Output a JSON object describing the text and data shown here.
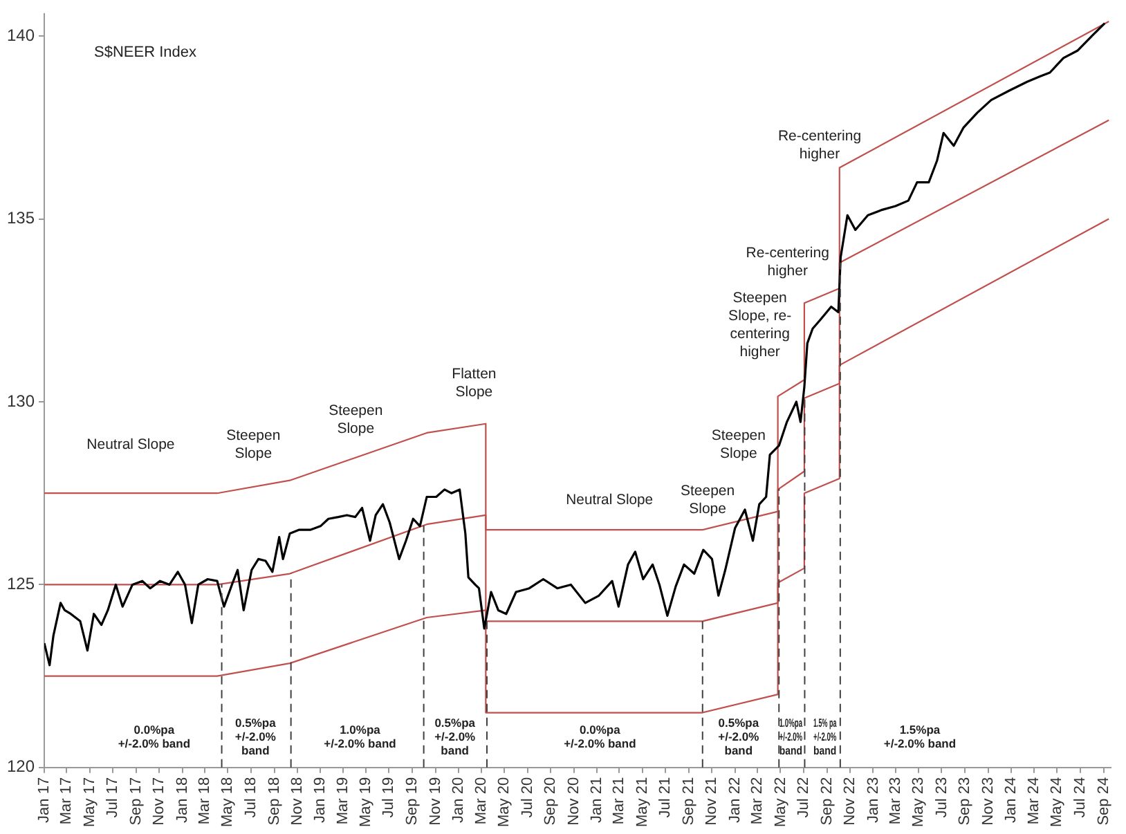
{
  "chart_data": {
    "type": "line",
    "title": "S$NEER Index",
    "xlim": [
      "2017-01-01",
      "2024-09-20"
    ],
    "xticks": [
      {
        "value": "2017-01-01",
        "label": "Jan 17"
      },
      {
        "value": "2017-03-01",
        "label": "Mar 17"
      },
      {
        "value": "2017-05-01",
        "label": "May 17"
      },
      {
        "value": "2017-07-01",
        "label": "Jul 17"
      },
      {
        "value": "2017-09-01",
        "label": "Sep 17"
      },
      {
        "value": "2017-11-01",
        "label": "Nov 17"
      },
      {
        "value": "2018-01-01",
        "label": "Jan 18"
      },
      {
        "value": "2018-03-01",
        "label": "Mar 18"
      },
      {
        "value": "2018-05-01",
        "label": "May 18"
      },
      {
        "value": "2018-07-01",
        "label": "Jul 18"
      },
      {
        "value": "2018-09-01",
        "label": "Sep 18"
      },
      {
        "value": "2018-11-01",
        "label": "Nov 18"
      },
      {
        "value": "2019-01-01",
        "label": "Jan 19"
      },
      {
        "value": "2019-03-01",
        "label": "Mar 19"
      },
      {
        "value": "2019-05-01",
        "label": "May 19"
      },
      {
        "value": "2019-07-01",
        "label": "Jul 19"
      },
      {
        "value": "2019-09-01",
        "label": "Sep 19"
      },
      {
        "value": "2019-11-01",
        "label": "Nov 19"
      },
      {
        "value": "2020-01-01",
        "label": "Jan 20"
      },
      {
        "value": "2020-03-01",
        "label": "Mar 20"
      },
      {
        "value": "2020-05-01",
        "label": "May 20"
      },
      {
        "value": "2020-07-01",
        "label": "Jul 20"
      },
      {
        "value": "2020-09-01",
        "label": "Sep 20"
      },
      {
        "value": "2020-11-01",
        "label": "Nov 20"
      },
      {
        "value": "2021-01-01",
        "label": "Jan 21"
      },
      {
        "value": "2021-03-01",
        "label": "Mar 21"
      },
      {
        "value": "2021-05-01",
        "label": "May 21"
      },
      {
        "value": "2021-07-01",
        "label": "Jul 21"
      },
      {
        "value": "2021-09-01",
        "label": "Sep 21"
      },
      {
        "value": "2021-11-01",
        "label": "Nov 21"
      },
      {
        "value": "2022-01-01",
        "label": "Jan 22"
      },
      {
        "value": "2022-03-01",
        "label": "Mar 22"
      },
      {
        "value": "2022-05-01",
        "label": "May 22"
      },
      {
        "value": "2022-07-01",
        "label": "Jul 22"
      },
      {
        "value": "2022-09-01",
        "label": "Sep 22"
      },
      {
        "value": "2022-11-01",
        "label": "Nov 22"
      },
      {
        "value": "2023-01-01",
        "label": "Jan 23"
      },
      {
        "value": "2023-03-01",
        "label": "Mar 23"
      },
      {
        "value": "2023-05-01",
        "label": "May 23"
      },
      {
        "value": "2023-07-01",
        "label": "Jul 23"
      },
      {
        "value": "2023-09-01",
        "label": "Sep 23"
      },
      {
        "value": "2023-11-01",
        "label": "Nov 23"
      },
      {
        "value": "2024-01-01",
        "label": "Jan 24"
      },
      {
        "value": "2024-03-01",
        "label": "Mar 24"
      },
      {
        "value": "2024-05-01",
        "label": "May 24"
      },
      {
        "value": "2024-07-01",
        "label": "Jul 24"
      },
      {
        "value": "2024-09-01",
        "label": "Sep 24"
      }
    ],
    "ylim": [
      120,
      140.6
    ],
    "yticks": [
      120,
      125,
      130,
      135,
      140
    ],
    "grid": false,
    "legend": false,
    "marker": "none",
    "line_style": "solid",
    "series": [
      {
        "color": "#000000",
        "x": [
          "2017-01-01",
          "2017-01-15",
          "2017-01-25",
          "2017-02-13",
          "2017-02-24",
          "2017-03-12",
          "2017-04-06",
          "2017-04-25",
          "2017-05-12",
          "2017-06-01",
          "2017-06-18",
          "2017-07-09",
          "2017-07-27",
          "2017-08-22",
          "2017-09-17",
          "2017-10-08",
          "2017-11-03",
          "2017-11-28",
          "2017-12-20",
          "2018-01-08",
          "2018-01-26",
          "2018-02-12",
          "2018-03-09",
          "2018-04-03",
          "2018-04-21",
          "2018-05-12",
          "2018-05-27",
          "2018-06-12",
          "2018-07-03",
          "2018-07-21",
          "2018-08-09",
          "2018-08-27",
          "2018-09-14",
          "2018-09-24",
          "2018-10-12",
          "2018-11-06",
          "2018-12-06",
          "2019-01-01",
          "2019-01-22",
          "2019-02-17",
          "2019-03-12",
          "2019-04-03",
          "2019-04-21",
          "2019-05-12",
          "2019-05-27",
          "2019-06-15",
          "2019-07-03",
          "2019-07-28",
          "2019-08-15",
          "2019-09-03",
          "2019-09-21",
          "2019-10-09",
          "2019-11-03",
          "2019-11-25",
          "2019-12-13",
          "2020-01-04",
          "2020-01-19",
          "2020-01-27",
          "2020-02-14",
          "2020-02-24",
          "2020-03-09",
          "2020-03-27",
          "2020-04-15",
          "2020-05-06",
          "2020-06-01",
          "2020-07-06",
          "2020-08-12",
          "2020-09-18",
          "2020-10-24",
          "2020-12-01",
          "2021-01-06",
          "2021-02-10",
          "2021-02-27",
          "2021-03-24",
          "2021-04-12",
          "2021-05-03",
          "2021-05-28",
          "2021-06-15",
          "2021-07-06",
          "2021-07-28",
          "2021-08-19",
          "2021-09-15",
          "2021-10-09",
          "2021-11-01",
          "2021-11-18",
          "2021-12-06",
          "2022-01-01",
          "2022-01-27",
          "2022-02-17",
          "2022-03-06",
          "2022-03-24",
          "2022-04-03",
          "2022-04-27",
          "2022-05-18",
          "2022-06-12",
          "2022-06-23",
          "2022-07-03",
          "2022-07-11",
          "2022-07-25",
          "2022-08-15",
          "2022-09-12",
          "2022-10-01",
          "2022-10-07",
          "2022-10-25",
          "2022-11-15",
          "2022-12-18",
          "2023-01-25",
          "2023-03-01",
          "2023-04-04",
          "2023-04-27",
          "2023-05-28",
          "2023-06-19",
          "2023-07-06",
          "2023-08-02",
          "2023-08-28",
          "2023-10-03",
          "2023-11-09",
          "2023-12-25",
          "2024-02-12",
          "2024-03-18",
          "2024-04-12",
          "2024-05-18",
          "2024-06-24",
          "2024-08-01",
          "2024-09-04"
        ],
        "values": [
          123.4,
          122.8,
          123.6,
          124.5,
          124.3,
          124.2,
          124.0,
          123.2,
          124.2,
          123.9,
          124.3,
          125.0,
          124.4,
          125.0,
          125.1,
          124.9,
          125.1,
          125.0,
          125.35,
          125.0,
          123.95,
          125.0,
          125.15,
          125.1,
          124.4,
          125.0,
          125.4,
          124.3,
          125.4,
          125.7,
          125.65,
          125.35,
          126.3,
          125.7,
          126.4,
          126.5,
          126.5,
          126.6,
          126.8,
          126.85,
          126.9,
          126.85,
          127.1,
          126.2,
          126.9,
          127.2,
          126.7,
          125.7,
          126.2,
          126.8,
          126.6,
          127.4,
          127.4,
          127.6,
          127.5,
          127.6,
          126.4,
          125.2,
          125.0,
          124.9,
          123.8,
          124.8,
          124.3,
          124.2,
          124.8,
          124.9,
          125.15,
          124.9,
          125.0,
          124.5,
          124.7,
          125.1,
          124.4,
          125.55,
          125.9,
          125.15,
          125.55,
          125.0,
          124.15,
          124.95,
          125.55,
          125.3,
          125.95,
          125.7,
          124.7,
          125.4,
          126.55,
          127.05,
          126.2,
          127.2,
          127.4,
          128.55,
          128.8,
          129.45,
          130.0,
          129.45,
          130.4,
          131.6,
          132.0,
          132.25,
          132.6,
          132.45,
          133.95,
          135.1,
          134.7,
          135.1,
          135.25,
          135.35,
          135.5,
          136.0,
          136.0,
          136.6,
          137.35,
          137.0,
          137.5,
          137.9,
          138.25,
          138.5,
          138.75,
          138.9,
          139.0,
          139.4,
          139.6,
          140.0,
          140.35
        ]
      },
      {
        "color": "#c0504d",
        "x": [
          "2017-01-01",
          "2018-04-03",
          "2018-10-12",
          "2019-10-09",
          "2020-03-13",
          "2020-03-13",
          "2021-10-07",
          "2022-04-24",
          "2022-04-24",
          "2022-07-03",
          "2022-07-03",
          "2022-10-04",
          "2022-10-04",
          "2024-09-15"
        ],
        "values": [
          127.5,
          127.5,
          127.85,
          129.15,
          129.4,
          126.5,
          126.5,
          127.0,
          130.15,
          130.6,
          132.7,
          133.1,
          136.4,
          140.4
        ]
      },
      {
        "color": "#c0504d",
        "x": [
          "2017-01-01",
          "2018-04-03",
          "2018-10-12",
          "2019-10-09",
          "2020-03-13",
          "2020-03-13",
          "2021-10-07",
          "2022-04-24",
          "2022-04-24",
          "2022-07-03",
          "2022-07-03",
          "2022-10-04",
          "2022-10-04",
          "2024-09-15"
        ],
        "values": [
          125.0,
          125.0,
          125.3,
          126.65,
          126.9,
          124.0,
          124.0,
          124.5,
          127.6,
          128.1,
          130.1,
          130.5,
          133.8,
          137.7
        ]
      },
      {
        "color": "#c0504d",
        "x": [
          "2017-01-01",
          "2018-04-03",
          "2018-10-12",
          "2019-10-09",
          "2020-03-13",
          "2020-03-13",
          "2021-10-07",
          "2022-04-24",
          "2022-04-24",
          "2022-07-03",
          "2022-07-03",
          "2022-10-04",
          "2022-10-04",
          "2024-09-15"
        ],
        "values": [
          122.5,
          122.5,
          122.85,
          124.1,
          124.3,
          121.5,
          121.5,
          122.0,
          125.05,
          125.45,
          127.5,
          127.9,
          131.0,
          135.0
        ]
      }
    ],
    "ref_lines": [
      {
        "axis": "x",
        "value": "2018-04-15",
        "color": "#404040",
        "line_style": "dashed"
      },
      {
        "axis": "x",
        "value": "2018-10-15",
        "color": "#404040",
        "line_style": "dashed"
      },
      {
        "axis": "x",
        "value": "2019-10-01",
        "color": "#404040",
        "line_style": "dashed"
      },
      {
        "axis": "x",
        "value": "2020-03-16",
        "color": "#404040",
        "line_style": "dashed"
      },
      {
        "axis": "x",
        "value": "2021-10-07",
        "color": "#404040",
        "line_style": "dashed"
      },
      {
        "axis": "x",
        "value": "2022-04-27",
        "color": "#404040",
        "line_style": "dashed"
      },
      {
        "axis": "x",
        "value": "2022-07-04",
        "color": "#404040",
        "line_style": "dashed"
      },
      {
        "axis": "x",
        "value": "2022-10-06",
        "color": "#404040",
        "line_style": "dashed"
      }
    ],
    "annotations": [
      "Neutral Slope",
      "Steepen\nSlope",
      "Steepen\nSlope",
      "Flatten\nSlope",
      "Neutral Slope",
      "Steepen\nSlope",
      "Steepen\nSlope",
      "Steepen\nSlope, re-\ncentering\nhigher",
      "Re-centering\nhigher",
      "Re-centering\nhigher",
      "0.0%pa\n+/-2.0% band",
      "0.5%pa\n+/-2.0%\nband",
      "1.0%pa\n+/-2.0% band",
      "0.5%pa\n+/-2.0%\nband",
      "0.0%pa\n+/-2.0% band",
      "0.5%pa\n+/-2.0%\nband",
      "1.0%pa\n+/-2.0%\nband",
      "1.5% pa\n+/-2.0%\nband",
      "1.5%pa\n+/-2.0% band"
    ]
  }
}
